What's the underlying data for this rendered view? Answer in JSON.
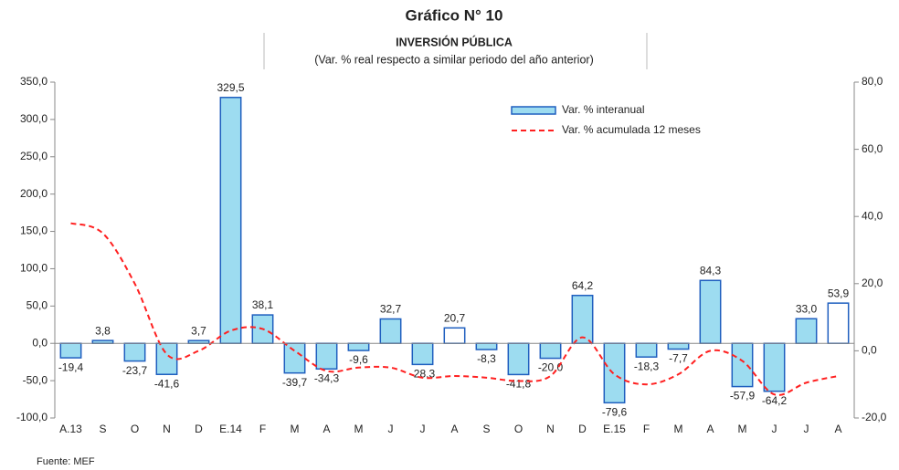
{
  "chart_data": {
    "type": "bar-line",
    "title": "Gráfico N° 10",
    "subtitle": "INVERSIÓN PÚBLICA",
    "subtitle2": "(Var. % real respecto a similar periodo del año anterior)",
    "source": "Fuente: MEF",
    "categories": [
      "A.13",
      "S",
      "O",
      "N",
      "D",
      "E.14",
      "F",
      "M",
      "A",
      "M",
      "J",
      "J",
      "A",
      "S",
      "O",
      "N",
      "D",
      "E.15",
      "F",
      "M",
      "A",
      "M",
      "J",
      "J",
      "A"
    ],
    "series": [
      {
        "name": "Var. % interanual",
        "type": "bar",
        "axis": "y",
        "color": "#9ddcf0",
        "edge_color": "#1f5fbf",
        "colors": [
          "#9ddcf0",
          "#9ddcf0",
          "#9ddcf0",
          "#9ddcf0",
          "#9ddcf0",
          "#9ddcf0",
          "#9ddcf0",
          "#9ddcf0",
          "#9ddcf0",
          "#9ddcf0",
          "#9ddcf0",
          "#9ddcf0",
          "#ffffff",
          "#9ddcf0",
          "#9ddcf0",
          "#9ddcf0",
          "#9ddcf0",
          "#9ddcf0",
          "#9ddcf0",
          "#9ddcf0",
          "#9ddcf0",
          "#9ddcf0",
          "#9ddcf0",
          "#9ddcf0",
          "#ffffff"
        ],
        "values": [
          -19.4,
          3.8,
          -23.7,
          -41.6,
          3.7,
          329.5,
          38.1,
          -39.7,
          -34.3,
          -9.6,
          32.7,
          -28.3,
          20.7,
          -8.3,
          -41.8,
          -20.0,
          64.2,
          -79.6,
          -18.3,
          -7.7,
          84.3,
          -57.9,
          -64.2,
          33.0,
          53.9
        ],
        "value_labels": [
          "-19,4",
          "3,8",
          "-23,7",
          "-41,6",
          "3,7",
          "329,5",
          "38,1",
          "-39,7",
          "-34,3",
          "-9,6",
          "32,7",
          "-28,3",
          "20,7",
          "-8,3",
          "-41,8",
          "-20,0",
          "64,2",
          "-79,6",
          "-18,3",
          "-7,7",
          "84,3",
          "-57,9",
          "-64,2",
          "33,0",
          "53,9"
        ]
      },
      {
        "name": "Var. % acumulada 12 meses",
        "type": "line",
        "axis": "y2",
        "color": "#ff2020",
        "values": [
          38,
          35,
          20,
          -1,
          0,
          6,
          6.5,
          0,
          -6,
          -5,
          -5,
          -8,
          -7.5,
          -8,
          -9,
          -7.5,
          4,
          -7,
          -10,
          -7,
          0,
          -3,
          -13,
          -9.5,
          -7.5
        ]
      }
    ],
    "ylim": [
      -100,
      350
    ],
    "yticks": [
      {
        "value": -100,
        "label": "-100,0"
      },
      {
        "value": -50,
        "label": "-50,0"
      },
      {
        "value": 0,
        "label": "0,0"
      },
      {
        "value": 50,
        "label": "50,0"
      },
      {
        "value": 100,
        "label": "100,0"
      },
      {
        "value": 150,
        "label": "150,0"
      },
      {
        "value": 200,
        "label": "200,0"
      },
      {
        "value": 250,
        "label": "250,0"
      },
      {
        "value": 300,
        "label": "300,0"
      },
      {
        "value": 350,
        "label": "350,0"
      }
    ],
    "y2lim": [
      -20,
      80
    ],
    "y2ticks": [
      {
        "value": -20,
        "label": "-20,0"
      },
      {
        "value": 0,
        "label": "0,0"
      },
      {
        "value": 20,
        "label": "20,0"
      },
      {
        "value": 40,
        "label": "40,0"
      },
      {
        "value": 60,
        "label": "60,0"
      },
      {
        "value": 80,
        "label": "80,0"
      }
    ],
    "legend": "upper-right"
  }
}
